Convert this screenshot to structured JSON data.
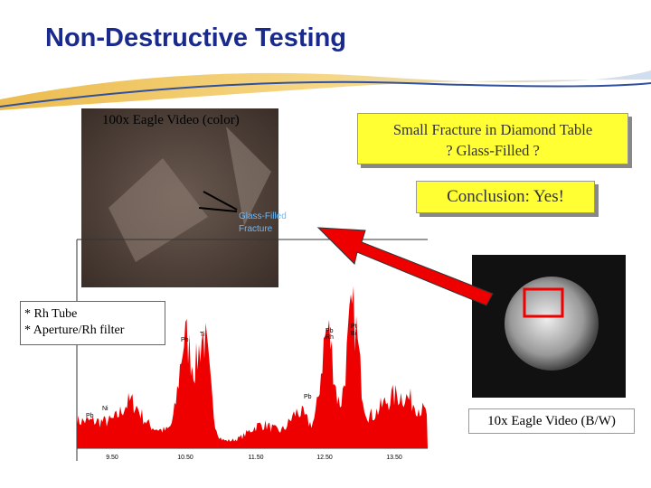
{
  "title": "Non-Destructive Testing",
  "color_photo": {
    "caption": "100x Eagle Video (color)",
    "overlay": [
      "Glass-Filled",
      "Fracture"
    ]
  },
  "callout_fracture": [
    "Small Fracture in Diamond Table",
    "? Glass-Filled ?"
  ],
  "callout_conclusion": "Conclusion:  Yes!",
  "settings_box": [
    "* Rh Tube",
    "* Aperture/Rh filter"
  ],
  "bw_photo": {
    "caption": "10x Eagle Video (B/W)"
  },
  "spectrum": {
    "x_ticks": [
      "9.50",
      "10.50",
      "11.50",
      "12.50",
      "13.50"
    ],
    "peak_labels": [
      "Pb",
      "Ti",
      "Pb",
      "Rh",
      "Pt",
      "Bi",
      "Pb",
      "Ni",
      "Pb"
    ]
  }
}
